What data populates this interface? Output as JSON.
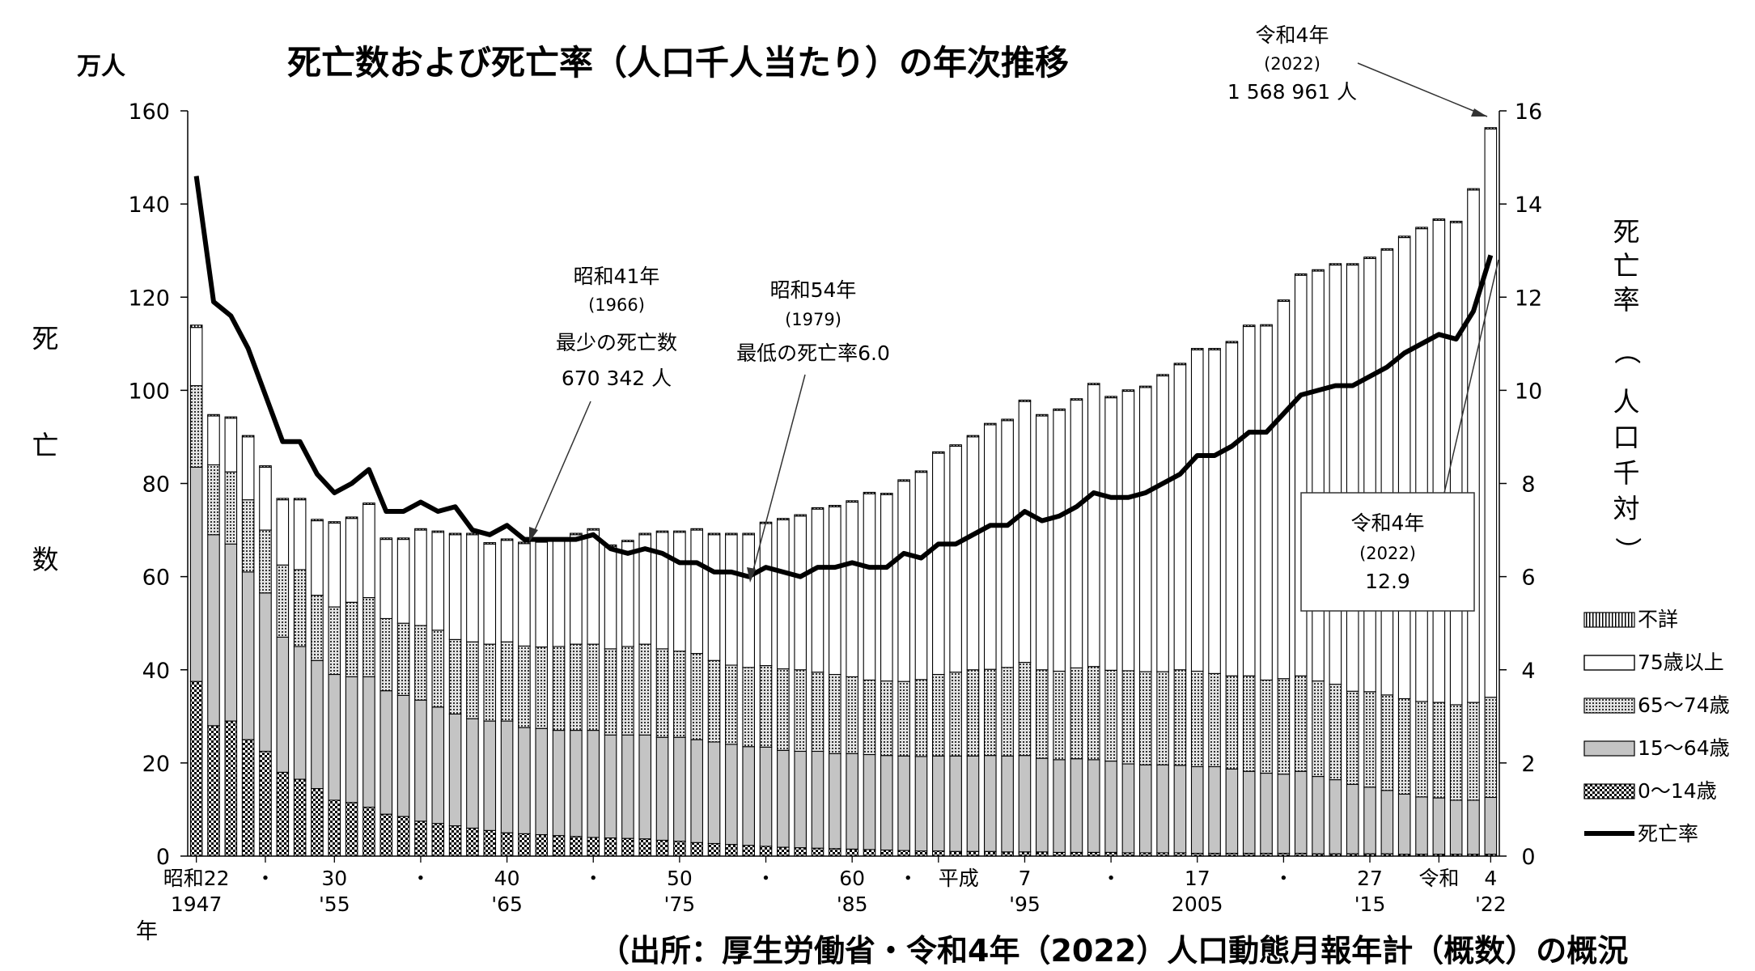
{
  "chart_data": {
    "type": "bar",
    "title": "死亡数および死亡率（人口千人当たり）の年次推移",
    "y_unit_label": "万人",
    "ylabel_left": [
      "死",
      "亡",
      "数"
    ],
    "ylabel_right": [
      "死",
      "亡",
      "率",
      "（",
      "人",
      "口",
      "千",
      "対",
      "）"
    ],
    "x_unit_label": "年",
    "source": "（出所：厚生労働省・令和4年（2022）人口動態月報年計（概数）の概況",
    "ylim_left": [
      0,
      160
    ],
    "ylim_right": [
      0,
      16
    ],
    "yticks_left": [
      "0",
      "20",
      "40",
      "60",
      "80",
      "100",
      "120",
      "140",
      "160"
    ],
    "yticks_right": [
      "0",
      "2",
      "4",
      "6",
      "8",
      "10",
      "12",
      "14",
      "16"
    ],
    "x_years": [
      1947,
      1948,
      1949,
      1950,
      1951,
      1952,
      1953,
      1954,
      1955,
      1956,
      1957,
      1958,
      1959,
      1960,
      1961,
      1962,
      1963,
      1964,
      1965,
      1966,
      1967,
      1968,
      1969,
      1970,
      1971,
      1972,
      1973,
      1974,
      1975,
      1976,
      1977,
      1978,
      1979,
      1980,
      1981,
      1982,
      1983,
      1984,
      1985,
      1986,
      1987,
      1988,
      1989,
      1990,
      1991,
      1992,
      1993,
      1994,
      1995,
      1996,
      1997,
      1998,
      1999,
      2000,
      2001,
      2002,
      2003,
      2004,
      2005,
      2006,
      2007,
      2008,
      2009,
      2010,
      2011,
      2012,
      2013,
      2014,
      2015,
      2016,
      2017,
      2018,
      2019,
      2020,
      2021,
      2022
    ],
    "x_tick_labels": [
      {
        "year": 1947,
        "top": "昭和22",
        "bottom": "1947"
      },
      {
        "year": 1951,
        "top": "・",
        "bottom": ""
      },
      {
        "year": 1955,
        "top": "30",
        "bottom": "'55"
      },
      {
        "year": 1960,
        "top": "・",
        "bottom": ""
      },
      {
        "year": 1965,
        "top": "40",
        "bottom": "'65"
      },
      {
        "year": 1970,
        "top": "・",
        "bottom": ""
      },
      {
        "year": 1975,
        "top": "50",
        "bottom": "'75"
      },
      {
        "year": 1980,
        "top": "・",
        "bottom": ""
      },
      {
        "year": 1985,
        "top": "60",
        "bottom": "'85"
      },
      {
        "year": 1990,
        "top": "・　平成",
        "bottom": ""
      },
      {
        "year": 1995,
        "top": "7",
        "bottom": "'95"
      },
      {
        "year": 2000,
        "top": "・",
        "bottom": ""
      },
      {
        "year": 2005,
        "top": "17",
        "bottom": "2005"
      },
      {
        "year": 2010,
        "top": "・",
        "bottom": ""
      },
      {
        "year": 2015,
        "top": "27",
        "bottom": "'15"
      },
      {
        "year": 2019,
        "top": "令和",
        "bottom": ""
      },
      {
        "year": 2022,
        "top": "4",
        "bottom": "'22"
      }
    ],
    "series": [
      {
        "name": "0〜14歳",
        "pattern": "checker",
        "values": [
          37.5,
          28,
          29,
          25,
          22.5,
          18,
          16.5,
          14.5,
          12,
          11.5,
          10.5,
          9,
          8.5,
          7.5,
          7,
          6.5,
          6,
          5.5,
          5,
          4.8,
          4.6,
          4.4,
          4.2,
          4,
          3.9,
          3.8,
          3.7,
          3.4,
          3.2,
          2.9,
          2.7,
          2.5,
          2.3,
          2.1,
          1.9,
          1.8,
          1.7,
          1.6,
          1.5,
          1.4,
          1.3,
          1.2,
          1.1,
          1.1,
          1.0,
          1.0,
          1.0,
          0.9,
          0.9,
          0.9,
          0.8,
          0.8,
          0.8,
          0.8,
          0.7,
          0.7,
          0.7,
          0.7,
          0.6,
          0.6,
          0.6,
          0.6,
          0.6,
          0.6,
          0.6,
          0.5,
          0.5,
          0.5,
          0.5,
          0.5,
          0.4,
          0.4,
          0.4,
          0.4,
          0.4,
          0.4
        ]
      },
      {
        "name": "15〜64歳",
        "pattern": "gray",
        "values": [
          46,
          41,
          38,
          36,
          34,
          29,
          28.5,
          27.5,
          27,
          27,
          28,
          26.5,
          26,
          26,
          25,
          24,
          23.5,
          23.5,
          24,
          22.8,
          22.8,
          22.6,
          22.8,
          23,
          22.1,
          22.2,
          22.3,
          22.1,
          22.3,
          22.1,
          21.8,
          21.5,
          21.2,
          21.3,
          20.8,
          20.7,
          20.8,
          20.4,
          20.5,
          20.4,
          20.3,
          20.3,
          20.3,
          20.4,
          20.5,
          20.5,
          20.6,
          20.6,
          20.7,
          20.1,
          19.9,
          20.1,
          19.9,
          19.6,
          19.1,
          18.9,
          18.9,
          18.8,
          18.6,
          18.6,
          18.1,
          17.6,
          17.2,
          17.0,
          17.6,
          16.6,
          15.9,
          14.9,
          14.3,
          13.6,
          12.9,
          12.3,
          12.1,
          11.6,
          11.6,
          12.2
        ]
      },
      {
        "name": "65〜74歳",
        "pattern": "dots",
        "values": [
          17.5,
          15,
          15.5,
          15.5,
          13.5,
          15.5,
          16.5,
          14,
          14.5,
          16,
          17,
          15.5,
          15.5,
          16,
          16.5,
          16,
          16.5,
          16.5,
          17,
          17.5,
          17.5,
          18,
          18.5,
          18.5,
          18.5,
          19,
          19.5,
          19,
          18.5,
          18.5,
          17.5,
          17,
          17,
          17.5,
          17.5,
          17.5,
          17,
          17,
          16.5,
          16,
          16,
          16,
          16.5,
          17.5,
          18,
          18.5,
          18.5,
          19,
          20,
          19,
          19,
          19.5,
          20,
          19.5,
          20,
          20,
          20,
          20.5,
          20.5,
          20,
          20,
          20.5,
          20,
          20.5,
          20.5,
          20.5,
          20.5,
          20,
          20.5,
          20.5,
          20.5,
          20.5,
          20.5,
          20.5,
          21,
          21.5
        ]
      },
      {
        "name": "75歳以上",
        "pattern": "white",
        "values": [
          12.5,
          10.5,
          11.5,
          13.5,
          13.5,
          14,
          15,
          16,
          18,
          18,
          20,
          17,
          18,
          20.5,
          21,
          22.5,
          23,
          21.5,
          21.8,
          22,
          22.5,
          23,
          23.5,
          24.5,
          22,
          22.5,
          23.5,
          25,
          25.5,
          26.5,
          27,
          28,
          28.5,
          30.5,
          32,
          33,
          35,
          36,
          37.5,
          40,
          40,
          43,
          44.5,
          47.5,
          48.5,
          50,
          52.5,
          53,
          56,
          54.5,
          56,
          57.5,
          60.5,
          58.5,
          60,
          61,
          63.5,
          65.5,
          69,
          69.5,
          71.5,
          75,
          76,
          81,
          86,
          88,
          90,
          91.5,
          93,
          95.5,
          99,
          101.5,
          103.5,
          103.5,
          110,
          122
        ]
      },
      {
        "name": "不詳",
        "pattern": "lines",
        "values": [
          0.5,
          0.3,
          0.3,
          0.3,
          0.3,
          0.3,
          0.3,
          0.3,
          0.3,
          0.3,
          0.3,
          0.3,
          0.3,
          0.3,
          0.3,
          0.3,
          0.3,
          0.3,
          0.3,
          0.3,
          0.3,
          0.3,
          0.3,
          0.3,
          0.3,
          0.3,
          0.3,
          0.3,
          0.3,
          0.3,
          0.3,
          0.3,
          0.3,
          0.3,
          0.3,
          0.3,
          0.3,
          0.3,
          0.3,
          0.3,
          0.3,
          0.3,
          0.3,
          0.3,
          0.3,
          0.3,
          0.3,
          0.3,
          0.3,
          0.3,
          0.3,
          0.3,
          0.3,
          0.3,
          0.3,
          0.3,
          0.3,
          0.3,
          0.3,
          0.3,
          0.3,
          0.3,
          0.3,
          0.3,
          0.3,
          0.3,
          0.3,
          0.3,
          0.3,
          0.3,
          0.3,
          0.3,
          0.3,
          0.3,
          0.3,
          0.3
        ]
      }
    ],
    "rate_series": {
      "name": "死亡率",
      "values": [
        14.6,
        11.9,
        11.6,
        10.9,
        9.9,
        8.9,
        8.9,
        8.2,
        7.8,
        8.0,
        8.3,
        7.4,
        7.4,
        7.6,
        7.4,
        7.5,
        7.0,
        6.9,
        7.1,
        6.8,
        6.8,
        6.8,
        6.8,
        6.9,
        6.6,
        6.5,
        6.6,
        6.5,
        6.3,
        6.3,
        6.1,
        6.1,
        6.0,
        6.2,
        6.1,
        6.0,
        6.2,
        6.2,
        6.3,
        6.2,
        6.2,
        6.5,
        6.4,
        6.7,
        6.7,
        6.9,
        7.1,
        7.1,
        7.4,
        7.2,
        7.3,
        7.5,
        7.8,
        7.7,
        7.7,
        7.8,
        8.0,
        8.2,
        8.6,
        8.6,
        8.8,
        9.1,
        9.1,
        9.5,
        9.9,
        10.0,
        10.1,
        10.1,
        10.3,
        10.5,
        10.8,
        11.0,
        11.2,
        11.1,
        11.7,
        12.9
      ]
    },
    "legend": [
      "不詳",
      "75歳以上",
      "65〜74歳",
      "15〜64歳",
      "0〜14歳",
      "死亡率"
    ],
    "legend_placement": "right",
    "annotations": {
      "a2022top": {
        "l1": "令和4年",
        "l2": "(2022)",
        "l3": "1 568 961 人"
      },
      "a1966": {
        "l1": "昭和41年",
        "l2": "(1966)",
        "l3": "最少の死亡数",
        "l4": "670 342 人"
      },
      "a1979": {
        "l1": "昭和54年",
        "l2": "(1979)",
        "l3": "最低の死亡率6.0"
      },
      "a2022box": {
        "l1": "令和4年",
        "l2": "(2022)",
        "l3": "12.9"
      }
    }
  }
}
